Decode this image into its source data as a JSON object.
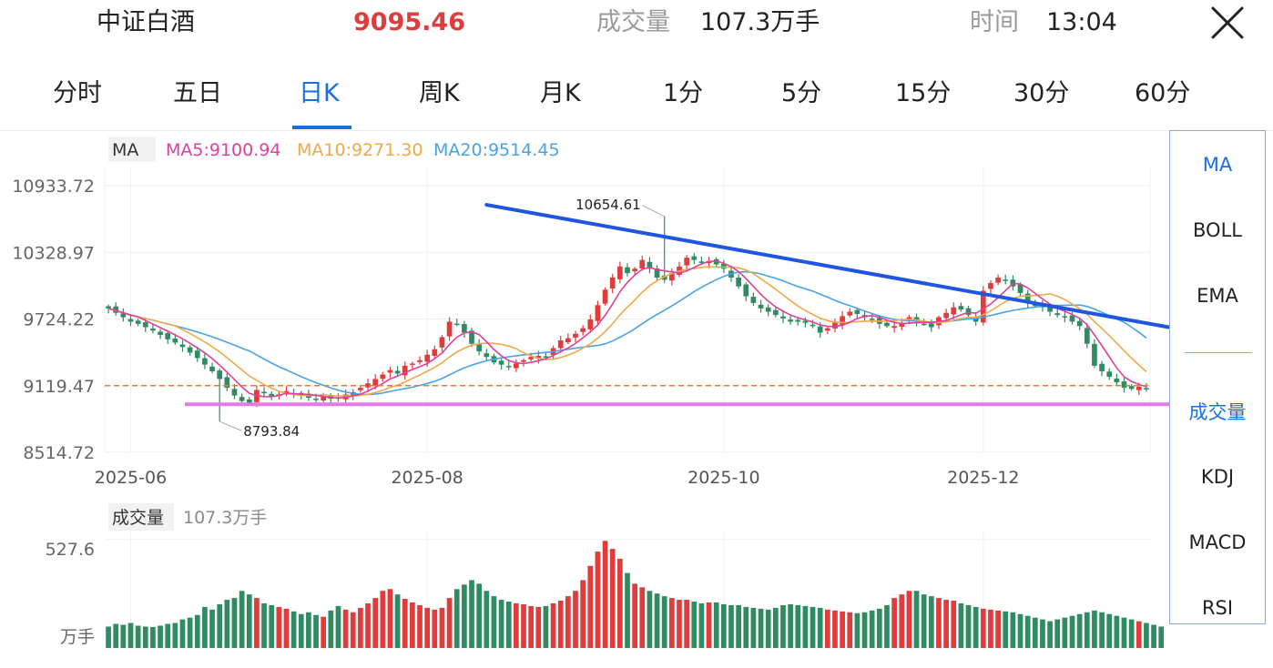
{
  "header": {
    "name": "中证白酒",
    "price": "9095.46",
    "volume_label": "成交量",
    "volume_value": "107.3万手",
    "time_label": "时间",
    "time_value": "13:04"
  },
  "tabs": [
    {
      "label": "分时"
    },
    {
      "label": "五日"
    },
    {
      "label": "日K",
      "active": true
    },
    {
      "label": "周K"
    },
    {
      "label": "月K"
    },
    {
      "label": "1分"
    },
    {
      "label": "5分"
    },
    {
      "label": "15分"
    },
    {
      "label": "30分"
    },
    {
      "label": "60分"
    }
  ],
  "side_menu": [
    {
      "label": "MA",
      "active": true
    },
    {
      "label": "BOLL"
    },
    {
      "label": "EMA"
    },
    {
      "label": "成交量",
      "active": true
    },
    {
      "label": "KDJ"
    },
    {
      "label": "MACD"
    },
    {
      "label": "RSI"
    }
  ],
  "legend": {
    "tag": "MA",
    "ma5": "MA5:9100.94",
    "ma10": "MA10:9271.30",
    "ma20": "MA20:9514.45"
  },
  "volume_panel": {
    "tag": "成交量",
    "value": "107.3万手",
    "ymax_label": "527.6",
    "unit": "万手"
  },
  "colors": {
    "up": "#e03c3c",
    "down": "#2e8b62",
    "ma5": "#e0409a",
    "ma10": "#f0a94a",
    "ma20": "#4aa3e8",
    "trendline": "#1f55e0",
    "support": "#e67ae6",
    "ref": "#f07a2a",
    "accent": "#1a6fe0"
  },
  "chart_data": {
    "type": "candlestick",
    "y_ticks": [
      "10933.72",
      "10328.97",
      "9724.22",
      "9119.47",
      "8514.72"
    ],
    "ylim": [
      8514.72,
      10933.72
    ],
    "x_ticks": [
      {
        "label": "2025-06",
        "index": 3
      },
      {
        "label": "2025-08",
        "index": 43
      },
      {
        "label": "2025-10",
        "index": 83
      },
      {
        "label": "2025-12",
        "index": 118
      }
    ],
    "high_annotation": {
      "label": "10654.61",
      "value": 10654.61,
      "index": 75
    },
    "low_annotation": {
      "label": "8793.84",
      "value": 8793.84,
      "index": 15
    },
    "reference_line": 9119.47,
    "support_line": 8950,
    "trendline": {
      "start": {
        "index": 51,
        "value": 10760
      },
      "end": {
        "index": 143,
        "value": 9650
      }
    },
    "close": [
      9820,
      9780,
      9740,
      9700,
      9680,
      9650,
      9620,
      9580,
      9540,
      9510,
      9470,
      9420,
      9370,
      9310,
      9250,
      9180,
      9100,
      9030,
      8980,
      8960,
      9080,
      9050,
      9020,
      9040,
      9070,
      9050,
      9030,
      9010,
      9000,
      9020,
      9000,
      9010,
      9040,
      9060,
      9100,
      9140,
      9180,
      9220,
      9260,
      9230,
      9300,
      9320,
      9350,
      9400,
      9450,
      9560,
      9700,
      9680,
      9600,
      9500,
      9430,
      9380,
      9330,
      9310,
      9290,
      9320,
      9350,
      9380,
      9390,
      9380,
      9460,
      9530,
      9550,
      9590,
      9640,
      9720,
      9850,
      9990,
      10100,
      10200,
      10140,
      10180,
      10260,
      10180,
      10100,
      10080,
      10140,
      10200,
      10280,
      10260,
      10240,
      10250,
      10220,
      10180,
      10100,
      10020,
      9930,
      9870,
      9820,
      9790,
      9760,
      9730,
      9700,
      9700,
      9690,
      9660,
      9600,
      9640,
      9690,
      9750,
      9790,
      9770,
      9740,
      9720,
      9680,
      9660,
      9660,
      9690,
      9740,
      9700,
      9680,
      9650,
      9740,
      9780,
      9830,
      9810,
      9760,
      9700,
      9980,
      10050,
      10100,
      10080,
      10020,
      9960,
      9870,
      9850,
      9830,
      9790,
      9760,
      9740,
      9700,
      9660,
      9500,
      9300,
      9250,
      9200,
      9150,
      9100,
      9090,
      9110,
      9095
    ]
  },
  "volume_data": [
    120,
    135,
    130,
    140,
    125,
    120,
    118,
    125,
    135,
    140,
    160,
    170,
    185,
    230,
    215,
    245,
    270,
    280,
    320,
    300,
    280,
    250,
    240,
    230,
    220,
    205,
    190,
    200,
    185,
    175,
    210,
    235,
    215,
    200,
    225,
    250,
    280,
    320,
    330,
    300,
    275,
    255,
    240,
    225,
    215,
    225,
    280,
    330,
    355,
    380,
    360,
    320,
    290,
    270,
    260,
    250,
    245,
    235,
    230,
    235,
    250,
    265,
    290,
    320,
    380,
    460,
    540,
    600,
    555,
    500,
    420,
    360,
    340,
    320,
    305,
    290,
    280,
    270,
    270,
    260,
    250,
    255,
    255,
    245,
    240,
    240,
    230,
    225,
    220,
    215,
    225,
    240,
    245,
    240,
    235,
    230,
    225,
    215,
    210,
    205,
    200,
    195,
    200,
    210,
    220,
    240,
    280,
    300,
    320,
    320,
    300,
    290,
    280,
    270,
    265,
    250,
    240,
    230,
    220,
    215,
    210,
    205,
    200,
    190,
    180,
    170,
    160,
    150,
    160,
    170,
    180,
    190,
    200,
    210,
    200,
    190,
    180,
    170,
    160,
    150,
    140,
    130,
    120
  ]
}
